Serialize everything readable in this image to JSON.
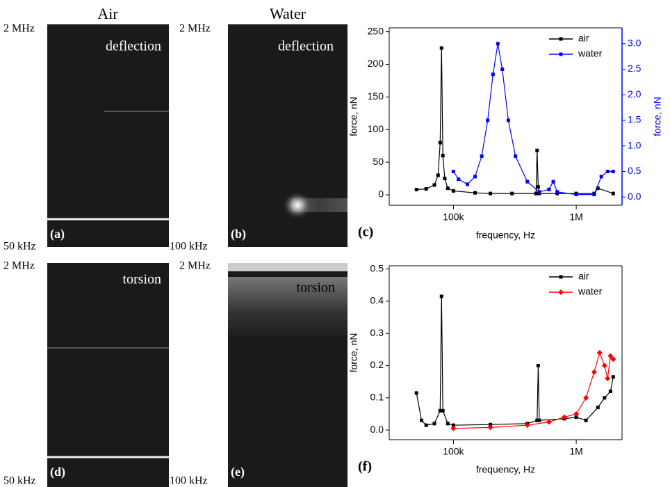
{
  "image_panels": {
    "headers": [
      "Air",
      "Water"
    ],
    "panels": [
      {
        "label": "(a)",
        "title": "deflection",
        "top": "2 MHz",
        "bottom": "50 kHz"
      },
      {
        "label": "(b)",
        "title": "deflection",
        "top": "2 MHz",
        "bottom": "100 kHz"
      },
      {
        "label": "(d)",
        "title": "torsion",
        "top": "2 MHz",
        "bottom": "50 kHz"
      },
      {
        "label": "(e)",
        "title": "torsion",
        "top": "2 MHz",
        "bottom": "100 kHz"
      }
    ]
  },
  "chart_data": [
    {
      "type": "line",
      "panel_label": "(c)",
      "xlabel": "frequency, Hz",
      "ylabel": "force, nN",
      "y2label": "force, nN",
      "xscale": "log",
      "xlim": [
        30000,
        2360000
      ],
      "xticks": [
        {
          "value": 100000,
          "label": "100k"
        },
        {
          "value": 1000000,
          "label": "1M"
        }
      ],
      "ylim": [
        -16,
        256
      ],
      "yticks": [
        0,
        50,
        100,
        150,
        200,
        250
      ],
      "y2lim": [
        -0.16,
        3.31
      ],
      "y2ticks": [
        {
          "value": 0,
          "label": "0.0"
        },
        0.5,
        {
          "value": 1,
          "label": "1.0"
        },
        1.5,
        {
          "value": 2,
          "label": "2.0"
        },
        2.5,
        {
          "value": 3,
          "label": "3.0"
        }
      ],
      "legend": "upper right",
      "series": [
        {
          "name": "air",
          "color": "#000000",
          "marker": "square",
          "x": [
            50000,
            60000,
            70000,
            75000,
            78000,
            80000,
            82000,
            85000,
            90000,
            100000,
            150000,
            200000,
            300000,
            470000,
            480000,
            490000,
            500000,
            700000,
            1000000,
            1400000,
            1500000,
            2000000
          ],
          "values": [
            8,
            9,
            15,
            30,
            80,
            225,
            60,
            25,
            10,
            6,
            3,
            2,
            2,
            2,
            68,
            12,
            2,
            2,
            2,
            2,
            10,
            2
          ]
        },
        {
          "name": "water",
          "color": "#0000ff",
          "marker": "square",
          "axis": "y2",
          "x": [
            100000,
            110000,
            130000,
            150000,
            170000,
            190000,
            210000,
            230000,
            250000,
            280000,
            320000,
            400000,
            500000,
            600000,
            650000,
            700000,
            1000000,
            1400000,
            1600000,
            1800000,
            2000000
          ],
          "values": [
            0.5,
            0.35,
            0.25,
            0.4,
            0.8,
            1.5,
            2.4,
            3.0,
            2.5,
            1.5,
            0.8,
            0.3,
            0.1,
            0.15,
            0.3,
            0.1,
            0.05,
            0.05,
            0.4,
            0.5,
            0.5
          ]
        }
      ]
    },
    {
      "type": "line",
      "panel_label": "(f)",
      "xlabel": "frequency, Hz",
      "ylabel": "force, nN",
      "xscale": "log",
      "xlim": [
        30000,
        2360000
      ],
      "xticks": [
        {
          "value": 100000,
          "label": "100k"
        },
        {
          "value": 1000000,
          "label": "1M"
        }
      ],
      "ylim": [
        -0.03,
        0.51
      ],
      "yticks": [
        {
          "value": 0,
          "label": "0.0"
        },
        0.1,
        0.2,
        0.3,
        0.4,
        0.5
      ],
      "legend": "upper right",
      "series": [
        {
          "name": "air",
          "color": "#000000",
          "marker": "square",
          "x": [
            50000,
            55000,
            60000,
            70000,
            78000,
            80000,
            82000,
            90000,
            100000,
            200000,
            400000,
            480000,
            490000,
            500000,
            800000,
            1000000,
            1200000,
            1500000,
            1700000,
            1900000,
            2000000
          ],
          "values": [
            0.115,
            0.03,
            0.015,
            0.02,
            0.06,
            0.415,
            0.06,
            0.02,
            0.015,
            0.017,
            0.02,
            0.03,
            0.2,
            0.03,
            0.035,
            0.04,
            0.03,
            0.07,
            0.1,
            0.12,
            0.165
          ]
        },
        {
          "name": "water",
          "color": "#ff0000",
          "marker": "diamond",
          "x": [
            100000,
            200000,
            400000,
            600000,
            800000,
            1000000,
            1200000,
            1400000,
            1550000,
            1700000,
            1800000,
            1900000,
            2000000
          ],
          "values": [
            0.005,
            0.008,
            0.015,
            0.025,
            0.04,
            0.05,
            0.1,
            0.18,
            0.24,
            0.2,
            0.16,
            0.23,
            0.22
          ]
        }
      ]
    }
  ]
}
